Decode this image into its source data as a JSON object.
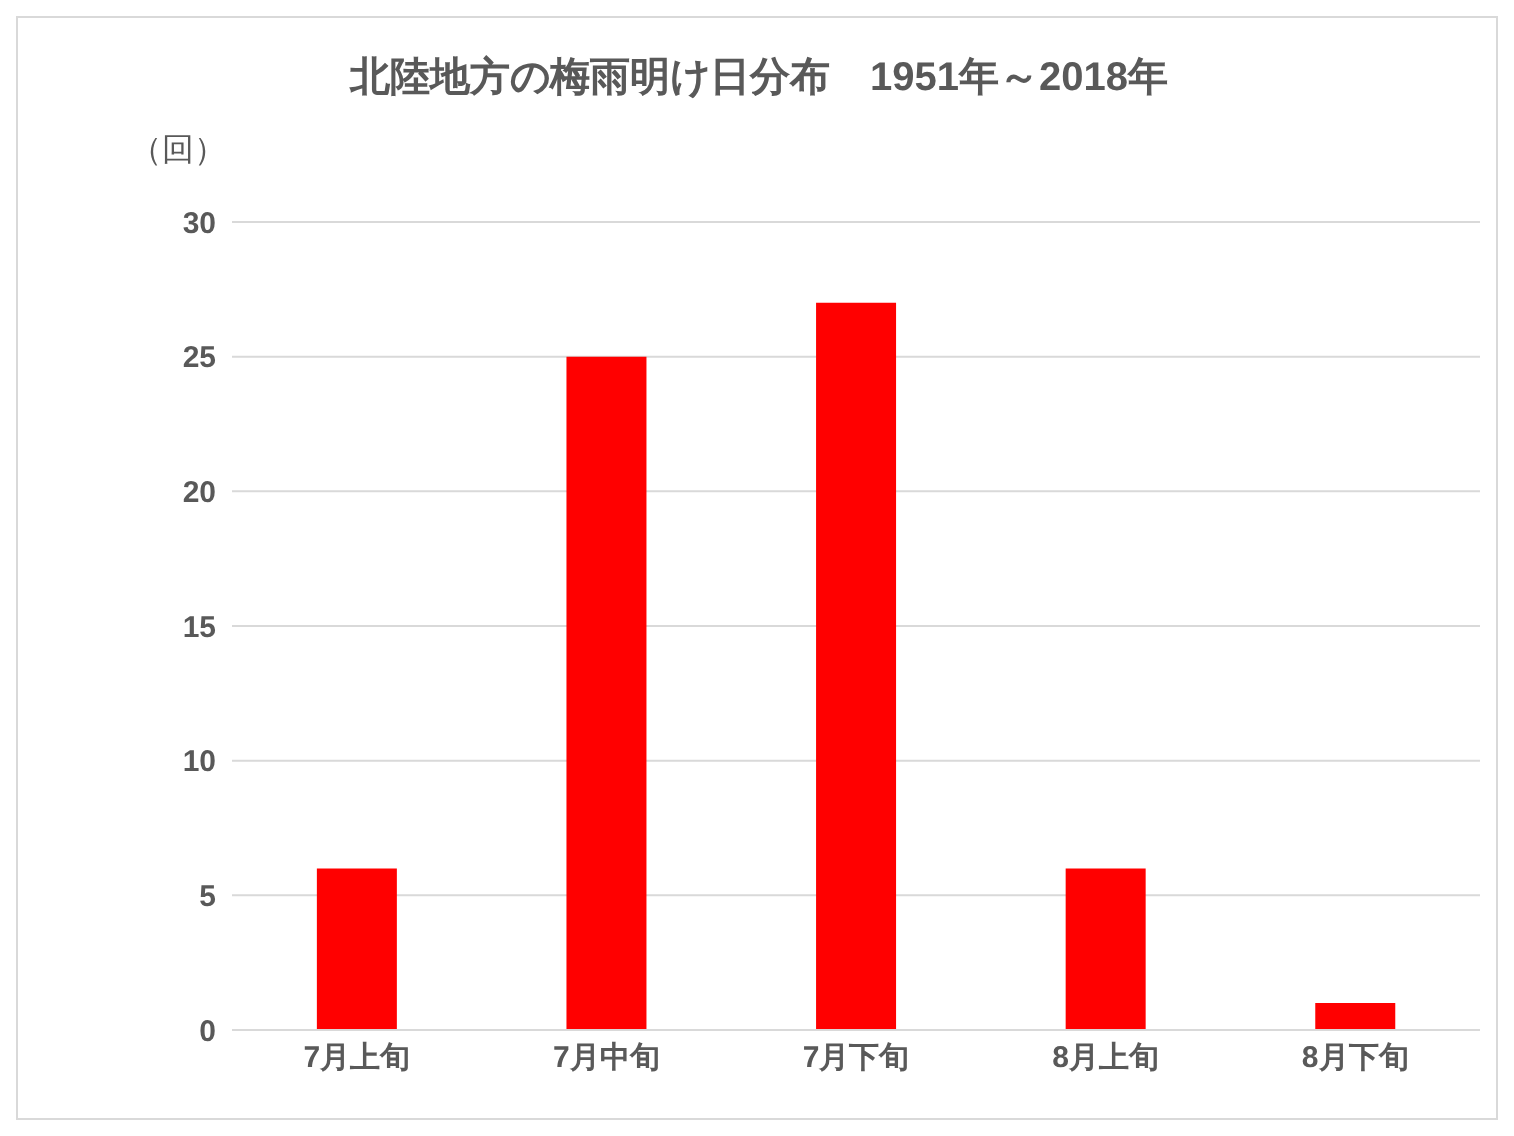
{
  "chart_data": {
    "type": "bar",
    "title": "北陸地方の梅雨明け日分布　1951年～2018年",
    "ylabel": "（回）",
    "categories": [
      "7月上旬",
      "7月中旬",
      "7月下旬",
      "8月上旬",
      "8月下旬"
    ],
    "values": [
      6,
      25,
      27,
      6,
      1
    ],
    "color": "#ff0000",
    "ylim": [
      0,
      30
    ],
    "yticks": [
      0,
      5,
      10,
      15,
      20,
      25,
      30
    ],
    "grid": "y"
  }
}
